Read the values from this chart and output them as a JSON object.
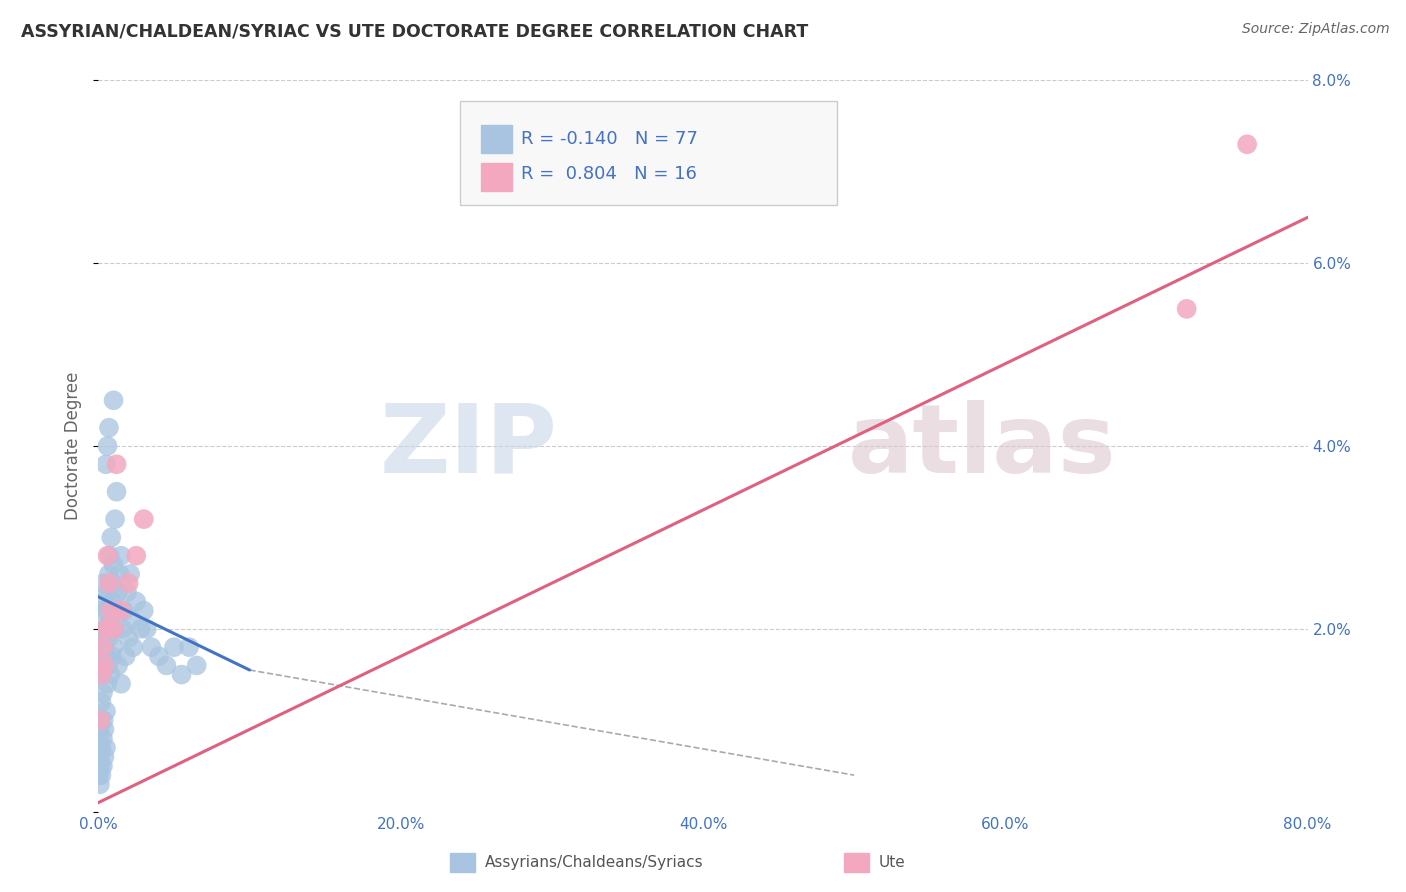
{
  "title": "ASSYRIAN/CHALDEAN/SYRIAC VS UTE DOCTORATE DEGREE CORRELATION CHART",
  "source": "Source: ZipAtlas.com",
  "ylabel": "Doctorate Degree",
  "R1": -0.14,
  "N1": 77,
  "R2": 0.804,
  "N2": 16,
  "color1": "#a8c4e0",
  "color2": "#f4a8c0",
  "line1_color": "#4472c4",
  "line2_color": "#e06080",
  "background": "#ffffff",
  "grid_color": "#cccccc",
  "xlim": [
    0,
    80
  ],
  "ylim": [
    0,
    8
  ],
  "xticks": [
    0,
    20,
    40,
    60,
    80
  ],
  "xtick_labels": [
    "0.0%",
    "20.0%",
    "40.0%",
    "60.0%",
    "80.0%"
  ],
  "yticks": [
    0,
    2,
    4,
    6,
    8
  ],
  "ytick_labels": [
    "",
    "2.0%",
    "4.0%",
    "6.0%",
    "8.0%"
  ],
  "legend_label1": "Assyrians/Chaldeans/Syriacs",
  "legend_label2": "Ute",
  "blue_dots": [
    [
      0.05,
      0.4
    ],
    [
      0.1,
      0.6
    ],
    [
      0.1,
      0.9
    ],
    [
      0.15,
      0.5
    ],
    [
      0.15,
      1.0
    ],
    [
      0.2,
      0.7
    ],
    [
      0.2,
      1.2
    ],
    [
      0.25,
      1.5
    ],
    [
      0.3,
      0.8
    ],
    [
      0.3,
      1.3
    ],
    [
      0.35,
      1.0
    ],
    [
      0.35,
      1.6
    ],
    [
      0.4,
      0.9
    ],
    [
      0.4,
      1.8
    ],
    [
      0.45,
      2.0
    ],
    [
      0.5,
      1.1
    ],
    [
      0.5,
      1.7
    ],
    [
      0.55,
      2.2
    ],
    [
      0.6,
      1.4
    ],
    [
      0.6,
      2.4
    ],
    [
      0.65,
      1.6
    ],
    [
      0.7,
      2.6
    ],
    [
      0.7,
      1.9
    ],
    [
      0.75,
      2.8
    ],
    [
      0.8,
      1.5
    ],
    [
      0.8,
      2.1
    ],
    [
      0.85,
      3.0
    ],
    [
      0.9,
      1.7
    ],
    [
      0.9,
      2.3
    ],
    [
      0.95,
      2.5
    ],
    [
      1.0,
      1.8
    ],
    [
      1.0,
      2.7
    ],
    [
      1.1,
      2.0
    ],
    [
      1.1,
      3.2
    ],
    [
      1.2,
      2.2
    ],
    [
      1.2,
      3.5
    ],
    [
      1.3,
      2.4
    ],
    [
      1.3,
      1.6
    ],
    [
      1.4,
      2.6
    ],
    [
      1.5,
      1.4
    ],
    [
      1.5,
      2.8
    ],
    [
      1.6,
      2.0
    ],
    [
      1.7,
      2.2
    ],
    [
      1.8,
      1.7
    ],
    [
      1.9,
      2.4
    ],
    [
      2.0,
      1.9
    ],
    [
      2.1,
      2.6
    ],
    [
      2.2,
      2.1
    ],
    [
      2.3,
      1.8
    ],
    [
      2.5,
      2.3
    ],
    [
      2.8,
      2.0
    ],
    [
      3.0,
      2.2
    ],
    [
      3.2,
      2.0
    ],
    [
      3.5,
      1.8
    ],
    [
      4.0,
      1.7
    ],
    [
      4.5,
      1.6
    ],
    [
      5.0,
      1.8
    ],
    [
      5.5,
      1.5
    ],
    [
      6.0,
      1.8
    ],
    [
      6.5,
      1.6
    ],
    [
      0.05,
      1.5
    ],
    [
      0.1,
      1.8
    ],
    [
      0.15,
      2.0
    ],
    [
      0.2,
      1.6
    ],
    [
      0.25,
      2.2
    ],
    [
      0.3,
      1.9
    ],
    [
      0.35,
      2.5
    ],
    [
      0.4,
      2.3
    ],
    [
      0.5,
      3.8
    ],
    [
      0.6,
      4.0
    ],
    [
      0.7,
      4.2
    ],
    [
      1.0,
      4.5
    ],
    [
      0.1,
      0.3
    ],
    [
      0.2,
      0.4
    ],
    [
      0.3,
      0.5
    ],
    [
      0.4,
      0.6
    ],
    [
      0.5,
      0.7
    ]
  ],
  "pink_dots": [
    [
      0.1,
      1.0
    ],
    [
      0.2,
      1.5
    ],
    [
      0.3,
      1.8
    ],
    [
      0.5,
      2.0
    ],
    [
      0.7,
      2.5
    ],
    [
      1.0,
      2.0
    ],
    [
      1.2,
      3.8
    ],
    [
      1.5,
      2.2
    ],
    [
      2.0,
      2.5
    ],
    [
      2.5,
      2.8
    ],
    [
      3.0,
      3.2
    ],
    [
      0.4,
      1.6
    ],
    [
      0.6,
      2.8
    ],
    [
      0.8,
      2.2
    ],
    [
      72.0,
      5.5
    ],
    [
      76.0,
      7.3
    ]
  ],
  "blue_line_solid": [
    [
      0,
      2.35
    ],
    [
      10,
      1.55
    ]
  ],
  "blue_line_dashed": [
    [
      10,
      1.55
    ],
    [
      50,
      0.4
    ]
  ],
  "pink_line": [
    [
      0,
      0.1
    ],
    [
      80,
      6.5
    ]
  ],
  "watermark_zip_color": "#c8d8e8",
  "watermark_atlas_color": "#ddc8d0"
}
